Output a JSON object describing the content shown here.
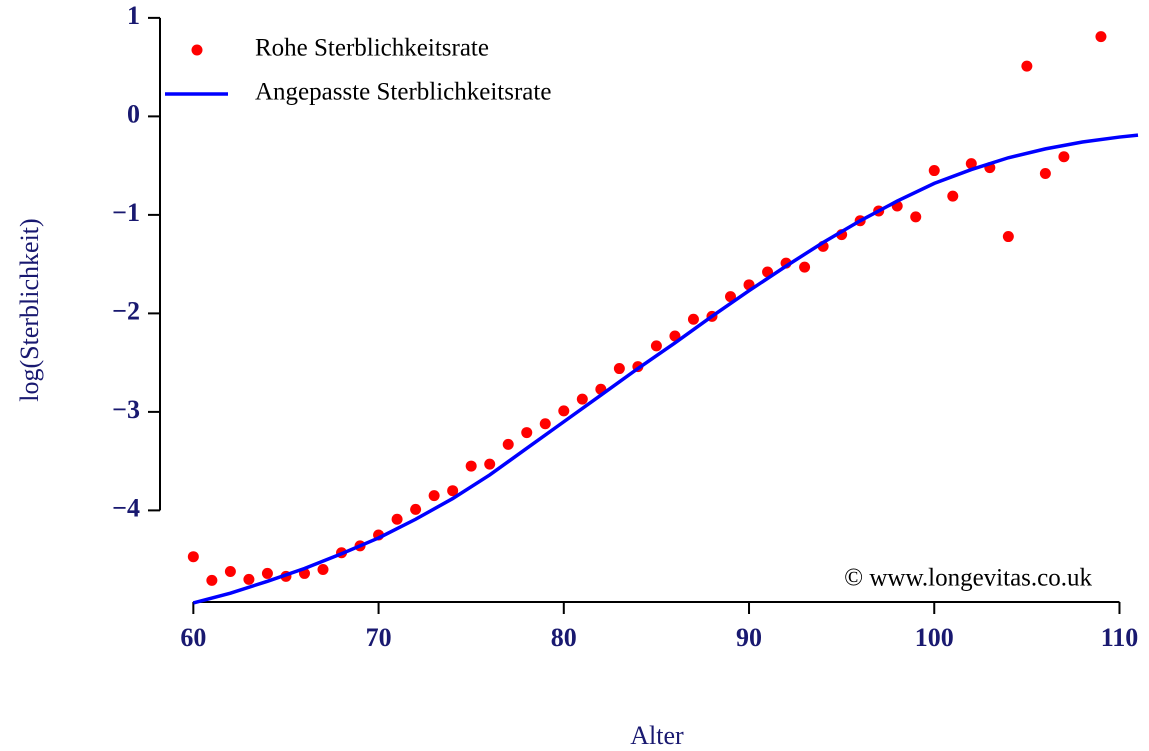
{
  "chart_data": {
    "type": "scatter",
    "xlabel": "Alter",
    "ylabel": "log(Sterblichkeit)",
    "annotation": "© www.longevitas.co.uk",
    "legend": "top-left",
    "xlim": [
      58.2,
      111
    ],
    "ylim": [
      -4.93,
      1.08
    ],
    "xticks": [
      60,
      70,
      80,
      90,
      100,
      110
    ],
    "yticks": [
      {
        "value": -4,
        "label": "−4"
      },
      {
        "value": -3,
        "label": "−3"
      },
      {
        "value": -2,
        "label": "−2"
      },
      {
        "value": -1,
        "label": "−1"
      },
      0,
      1
    ],
    "series": [
      {
        "name": "Rohe Sterblichkeitsrate",
        "color": "#ff0000",
        "mark": "point",
        "x": [
          60,
          61,
          62,
          63,
          64,
          65,
          66,
          67,
          68,
          69,
          70,
          71,
          72,
          73,
          74,
          75,
          76,
          77,
          78,
          79,
          80,
          81,
          82,
          83,
          84,
          85,
          86,
          87,
          88,
          89,
          90,
          91,
          92,
          93,
          94,
          95,
          96,
          97,
          98,
          99,
          100,
          101,
          102,
          103,
          104,
          105,
          106,
          107,
          109
        ],
        "values": [
          -4.47,
          -4.71,
          -4.62,
          -4.7,
          -4.64,
          -4.67,
          -4.64,
          -4.6,
          -4.43,
          -4.36,
          -4.25,
          -4.09,
          -3.99,
          -3.85,
          -3.8,
          -3.55,
          -3.53,
          -3.33,
          -3.21,
          -3.12,
          -2.99,
          -2.87,
          -2.77,
          -2.56,
          -2.54,
          -2.33,
          -2.23,
          -2.06,
          -2.03,
          -1.83,
          -1.71,
          -1.58,
          -1.49,
          -1.53,
          -1.32,
          -1.2,
          -1.06,
          -0.96,
          -0.91,
          -1.02,
          -0.55,
          -0.81,
          -0.48,
          -0.52,
          -1.22,
          0.51,
          -0.58,
          -0.41,
          0.81
        ]
      },
      {
        "name": "Angepasste Sterblichkeitsrate",
        "color": "#0000ff",
        "mark": "line",
        "x": [
          60,
          62,
          64,
          66,
          68,
          70,
          72,
          74,
          76,
          78,
          80,
          82,
          84,
          86,
          88,
          90,
          92,
          94,
          96,
          98,
          100,
          102,
          104,
          106,
          108,
          110,
          111
        ],
        "values": [
          -4.94,
          -4.84,
          -4.72,
          -4.59,
          -4.44,
          -4.28,
          -4.09,
          -3.88,
          -3.64,
          -3.37,
          -3.1,
          -2.83,
          -2.56,
          -2.3,
          -2.03,
          -1.77,
          -1.52,
          -1.28,
          -1.06,
          -0.86,
          -0.68,
          -0.54,
          -0.42,
          -0.33,
          -0.26,
          -0.21,
          -0.19
        ]
      }
    ]
  }
}
